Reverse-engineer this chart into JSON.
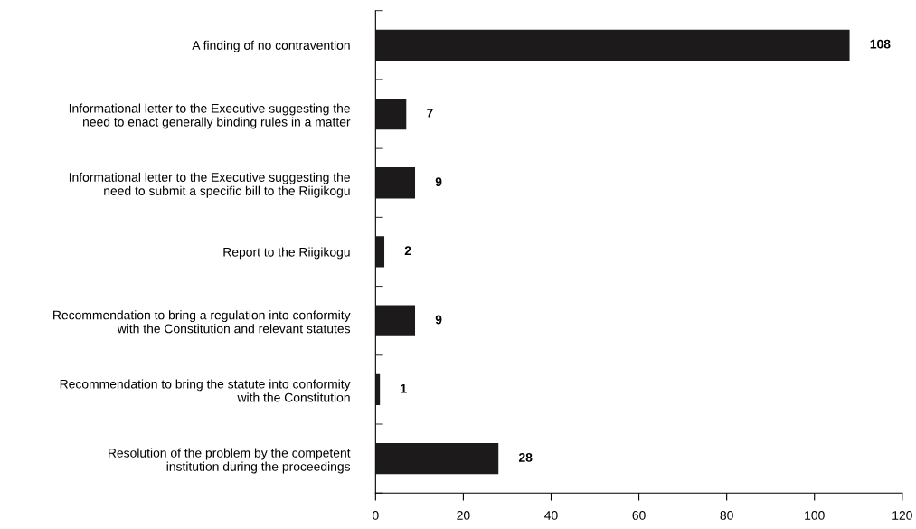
{
  "chart_data": {
    "type": "bar",
    "orientation": "horizontal",
    "categories": [
      "A finding of no contravention",
      "Informational letter to the Executive suggesting the\nneed to enact generally binding rules in a matter",
      "Informational letter to the Executive suggesting the\nneed to submit a specific bill to the Riigikogu",
      "Report to the Riigikogu",
      "Recommendation to bring a regulation into conformity\nwith the Constitution and relevant statutes",
      "Recommendation to bring the statute into conformity\nwith the Constitution",
      "Resolution of the problem by the competent\ninstitution during the proceedings"
    ],
    "values": [
      108,
      7,
      9,
      2,
      9,
      1,
      28
    ],
    "color": "#1c1a1b",
    "xlim": [
      0,
      120
    ],
    "xticks": [
      0,
      20,
      40,
      60,
      80,
      100,
      120
    ],
    "data_labels": true,
    "grid": false,
    "legend": false
  }
}
